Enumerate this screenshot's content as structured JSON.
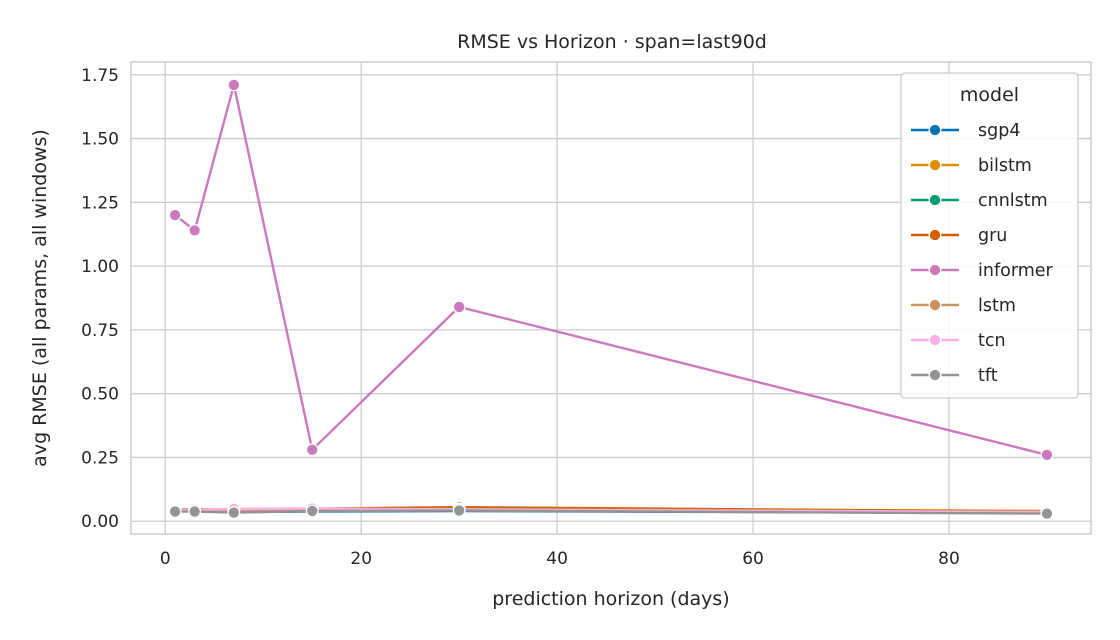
{
  "chart_data": {
    "type": "line",
    "title": "RMSE vs Horizon  ·  span=last90d",
    "xlabel": "prediction horizon (days)",
    "ylabel": "avg RMSE (all params, all windows)",
    "xlim": [
      -3.5,
      94.5
    ],
    "ylim": [
      -0.05,
      1.8
    ],
    "xticks": [
      0,
      20,
      40,
      60,
      80
    ],
    "yticks": [
      0.0,
      0.25,
      0.5,
      0.75,
      1.0,
      1.25,
      1.5,
      1.75
    ],
    "ytick_labels": [
      "0.00",
      "0.25",
      "0.50",
      "0.75",
      "1.00",
      "1.25",
      "1.50",
      "1.75"
    ],
    "xtick_labels": [
      "0",
      "20",
      "40",
      "60",
      "80"
    ],
    "grid": true,
    "x": [
      1,
      3,
      7,
      15,
      30,
      90
    ],
    "legend": {
      "title": "model",
      "position": "upper-right"
    },
    "series": [
      {
        "name": "sgp4",
        "color": "#0173b2",
        "values": [
          0.04,
          0.04,
          0.036,
          0.038,
          0.04,
          0.032
        ]
      },
      {
        "name": "bilstm",
        "color": "#de8f05",
        "values": [
          0.044,
          0.046,
          0.044,
          0.048,
          0.05,
          0.04
        ]
      },
      {
        "name": "cnnlstm",
        "color": "#029e73",
        "values": [
          0.04,
          0.041,
          0.038,
          0.042,
          0.044,
          0.034
        ]
      },
      {
        "name": "gru",
        "color": "#d55e00",
        "values": [
          0.045,
          0.047,
          0.045,
          0.049,
          0.055,
          0.038
        ]
      },
      {
        "name": "informer",
        "color": "#cc78bc",
        "values": [
          1.2,
          1.14,
          1.71,
          0.28,
          0.84,
          0.26
        ]
      },
      {
        "name": "lstm",
        "color": "#ca9161",
        "values": [
          0.043,
          0.045,
          0.042,
          0.046,
          0.048,
          0.037
        ]
      },
      {
        "name": "tcn",
        "color": "#fbafe4",
        "values": [
          0.042,
          0.044,
          0.048,
          0.05,
          0.046,
          0.036
        ]
      },
      {
        "name": "tft",
        "color": "#949494",
        "values": [
          0.038,
          0.038,
          0.034,
          0.04,
          0.042,
          0.03
        ]
      }
    ]
  }
}
